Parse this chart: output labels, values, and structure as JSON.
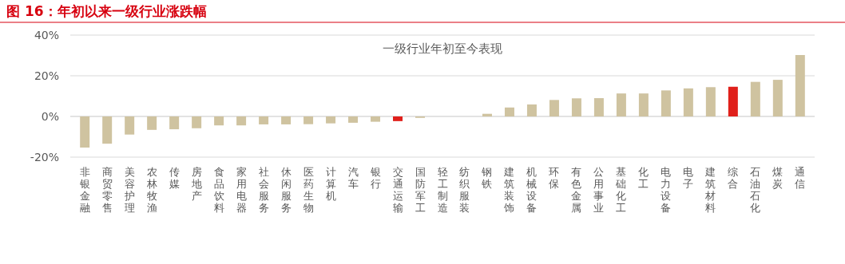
{
  "chart_data": {
    "type": "bar",
    "title": "图 16：年初以来一级行业涨跌幅",
    "subtitle": "一级行业年初至今表现",
    "categories": [
      "非银金融",
      "商贸零售",
      "美容护理",
      "农林牧渔",
      "传媒",
      "房地产",
      "食品饮料",
      "家用电器",
      "社会服务",
      "休闲服务",
      "医药生物",
      "计算机",
      "汽车",
      "银行",
      "交通运输",
      "国防军工",
      "轻工制造",
      "纺织服装",
      "钢铁",
      "建筑装饰",
      "机械设备",
      "环保",
      "有色金属",
      "公用事业",
      "基础化工",
      "化工",
      "电力设备",
      "电子",
      "建筑材料",
      "综合",
      "石油石化",
      "煤炭",
      "通信"
    ],
    "values": [
      -15.3,
      -13.4,
      -8.9,
      -6.6,
      -6.3,
      -5.8,
      -4.4,
      -4.4,
      -3.9,
      -3.9,
      -3.8,
      -3.4,
      -3.1,
      -2.6,
      -2.3,
      -0.7,
      null,
      null,
      1.3,
      4.4,
      5.9,
      8.1,
      8.9,
      9.0,
      11.3,
      11.3,
      12.8,
      13.8,
      14.4,
      14.6,
      17.0,
      18.0,
      30.2
    ],
    "colors": [
      "#cfc3a0",
      "#cfc3a0",
      "#cfc3a0",
      "#cfc3a0",
      "#cfc3a0",
      "#cfc3a0",
      "#cfc3a0",
      "#cfc3a0",
      "#cfc3a0",
      "#cfc3a0",
      "#cfc3a0",
      "#cfc3a0",
      "#cfc3a0",
      "#cfc3a0",
      "#e0201b",
      "#cfc3a0",
      null,
      null,
      "#cfc3a0",
      "#cfc3a0",
      "#cfc3a0",
      "#cfc3a0",
      "#cfc3a0",
      "#cfc3a0",
      "#cfc3a0",
      "#cfc3a0",
      "#cfc3a0",
      "#cfc3a0",
      "#cfc3a0",
      "#e0201b",
      "#cfc3a0",
      "#cfc3a0",
      "#cfc3a0"
    ],
    "ylim": [
      -20,
      40
    ],
    "yticks": [
      {
        "value": -20,
        "label": "-20%"
      },
      {
        "value": 0,
        "label": "0%"
      },
      {
        "value": 20,
        "label": "20%"
      },
      {
        "value": 40,
        "label": "40%"
      }
    ],
    "grid": "y"
  }
}
